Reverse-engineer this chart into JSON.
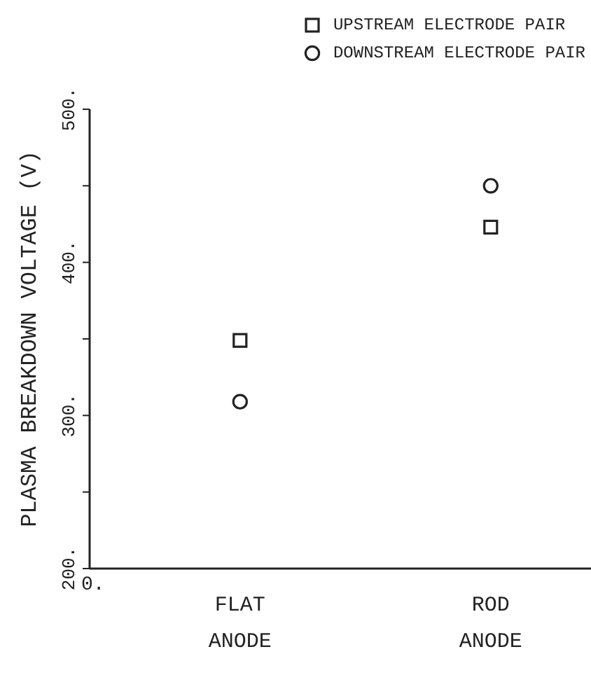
{
  "chart_data": {
    "type": "scatter",
    "ylabel": "PLASMA BREAKDOWN VOLTAGE (V)",
    "categories": [
      "FLAT ANODE",
      "ROD ANODE"
    ],
    "series": [
      {
        "name": "UPSTREAM ELECTRODE PAIR",
        "color": "#222222",
        "marker": "square",
        "values": [
          349,
          423
        ]
      },
      {
        "name": "DOWNSTREAM ELECTRODE PAIR",
        "color": "#222222",
        "marker": "circle",
        "values": [
          309,
          450
        ]
      }
    ],
    "ylim": [
      200,
      500
    ],
    "yticks": [
      {
        "value": 200,
        "label": "200."
      },
      {
        "value": 250,
        "label": null
      },
      {
        "value": 300,
        "label": "300."
      },
      {
        "value": 350,
        "label": null
      },
      {
        "value": 400,
        "label": "400."
      },
      {
        "value": 450,
        "label": null
      },
      {
        "value": 500,
        "label": "500."
      }
    ],
    "grid": false,
    "legend": "top right",
    "annotations": [
      "0."
    ]
  }
}
